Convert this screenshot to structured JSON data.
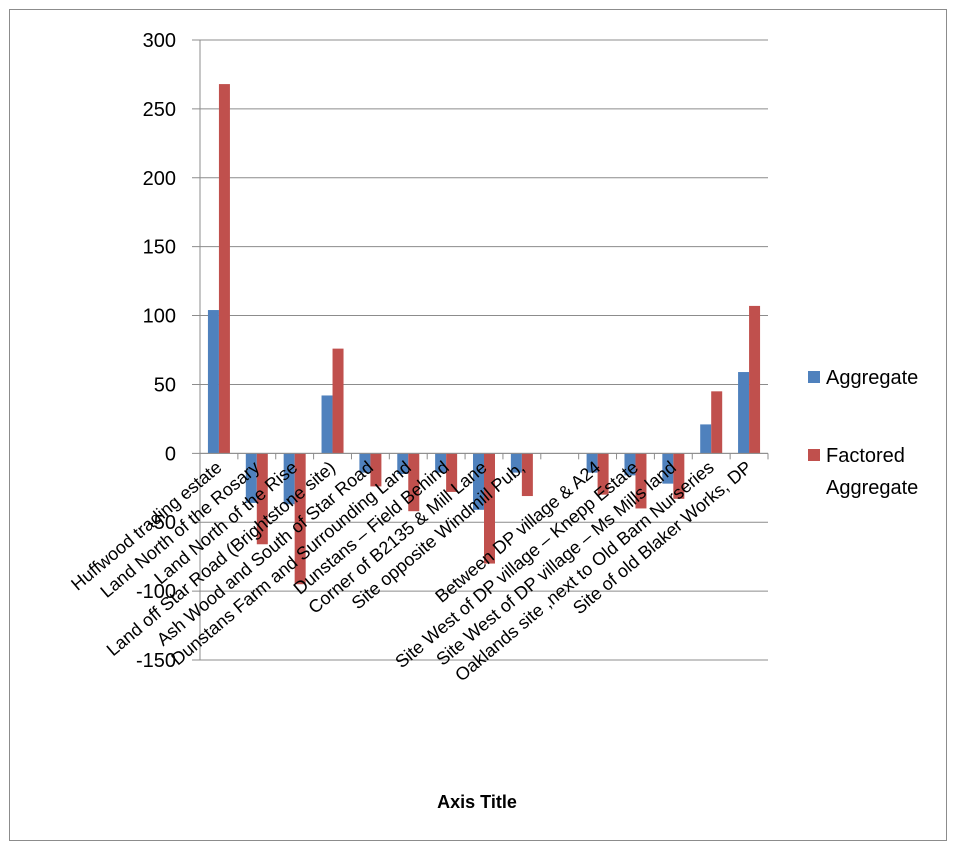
{
  "chart_data": {
    "type": "bar",
    "xlabel": "Axis Title",
    "ylabel": "",
    "ylim": [
      -150,
      300
    ],
    "yticks": [
      300,
      250,
      200,
      150,
      100,
      50,
      0,
      -50,
      -100,
      -150
    ],
    "grid": true,
    "legend_position": "right",
    "categories": [
      "Huffwood trading estate",
      "Land North of the Rosary",
      "Land North of the Rise",
      "Land off Star Road (Brightstone site)",
      "Ash Wood and South of Star Road",
      "Dunstans Farm and Surrounding Land",
      "Dunstans – Field Behind",
      "Corner of B2135 & Mill Lane",
      "Site opposite Windmill Pub,",
      "",
      "Between DP village & A24",
      "Site West of DP village – Knepp Estate",
      "Site West of DP village – Ms Mills land",
      "Oaklands site ,next to Old Barn Nurseries",
      "Site of old Blaker Works, DP"
    ],
    "series": [
      {
        "name": "Aggregate",
        "color": "#4f81bd",
        "values": [
          104,
          -36,
          -37,
          42,
          -14,
          -15,
          -14,
          -41,
          -14,
          0,
          -14,
          -16,
          -22,
          21,
          59
        ]
      },
      {
        "name": "Factored Aggregate",
        "color": "#c0504d",
        "values": [
          268,
          -66,
          -95,
          76,
          -24,
          -42,
          -28,
          -80,
          -31,
          0,
          -30,
          -40,
          -33,
          45,
          107
        ]
      }
    ],
    "legend": {
      "items": [
        {
          "lines": [
            "Aggregate"
          ],
          "color": "#4f81bd"
        },
        {
          "lines": [
            "Factored",
            "Aggregate"
          ],
          "color": "#c0504d"
        }
      ]
    }
  }
}
